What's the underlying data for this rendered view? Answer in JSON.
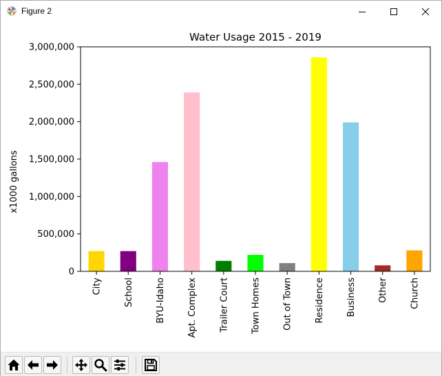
{
  "window": {
    "title": "Figure 2",
    "icon": "matplotlib-figure-icon",
    "controls": [
      "minimize-icon",
      "maximize-icon",
      "close-icon"
    ]
  },
  "toolbar": {
    "buttons": [
      {
        "name": "home-button",
        "icon": "home-icon"
      },
      {
        "name": "back-button",
        "icon": "arrow-left-icon"
      },
      {
        "name": "forward-button",
        "icon": "arrow-right-icon"
      },
      {
        "name": "pan-button",
        "icon": "move-icon"
      },
      {
        "name": "zoom-button",
        "icon": "magnifier-icon"
      },
      {
        "name": "configure-subplots-button",
        "icon": "sliders-icon"
      },
      {
        "name": "save-button",
        "icon": "floppy-disk-icon"
      }
    ]
  },
  "chart_data": {
    "type": "bar",
    "title": "Water Usage 2015 - 2019",
    "xlabel": "",
    "ylabel": "x1000 gallons",
    "ylim": [
      0,
      3000000
    ],
    "yticks": [
      0,
      500000,
      1000000,
      1500000,
      2000000,
      2500000,
      3000000
    ],
    "ytick_labels": [
      "0",
      "500,000",
      "1,000,000",
      "1,500,000",
      "2,000,000",
      "2,500,000",
      "3,000,000"
    ],
    "categories": [
      "City",
      "School",
      "BYU-Idaho",
      "Apt. Complex",
      "Trailer Court",
      "Town Homes",
      "Out of Town",
      "Residence",
      "Business",
      "Other",
      "Church"
    ],
    "values": [
      270000,
      270000,
      1460000,
      2390000,
      140000,
      220000,
      110000,
      2860000,
      1990000,
      80000,
      280000
    ],
    "colors": [
      "#ffd700",
      "#800080",
      "#ee82ee",
      "#ffc0cb",
      "#008000",
      "#00ff00",
      "#808080",
      "#ffff00",
      "#87ceeb",
      "#a52a2a",
      "#ffa500"
    ],
    "grid": false,
    "legend": "none"
  }
}
